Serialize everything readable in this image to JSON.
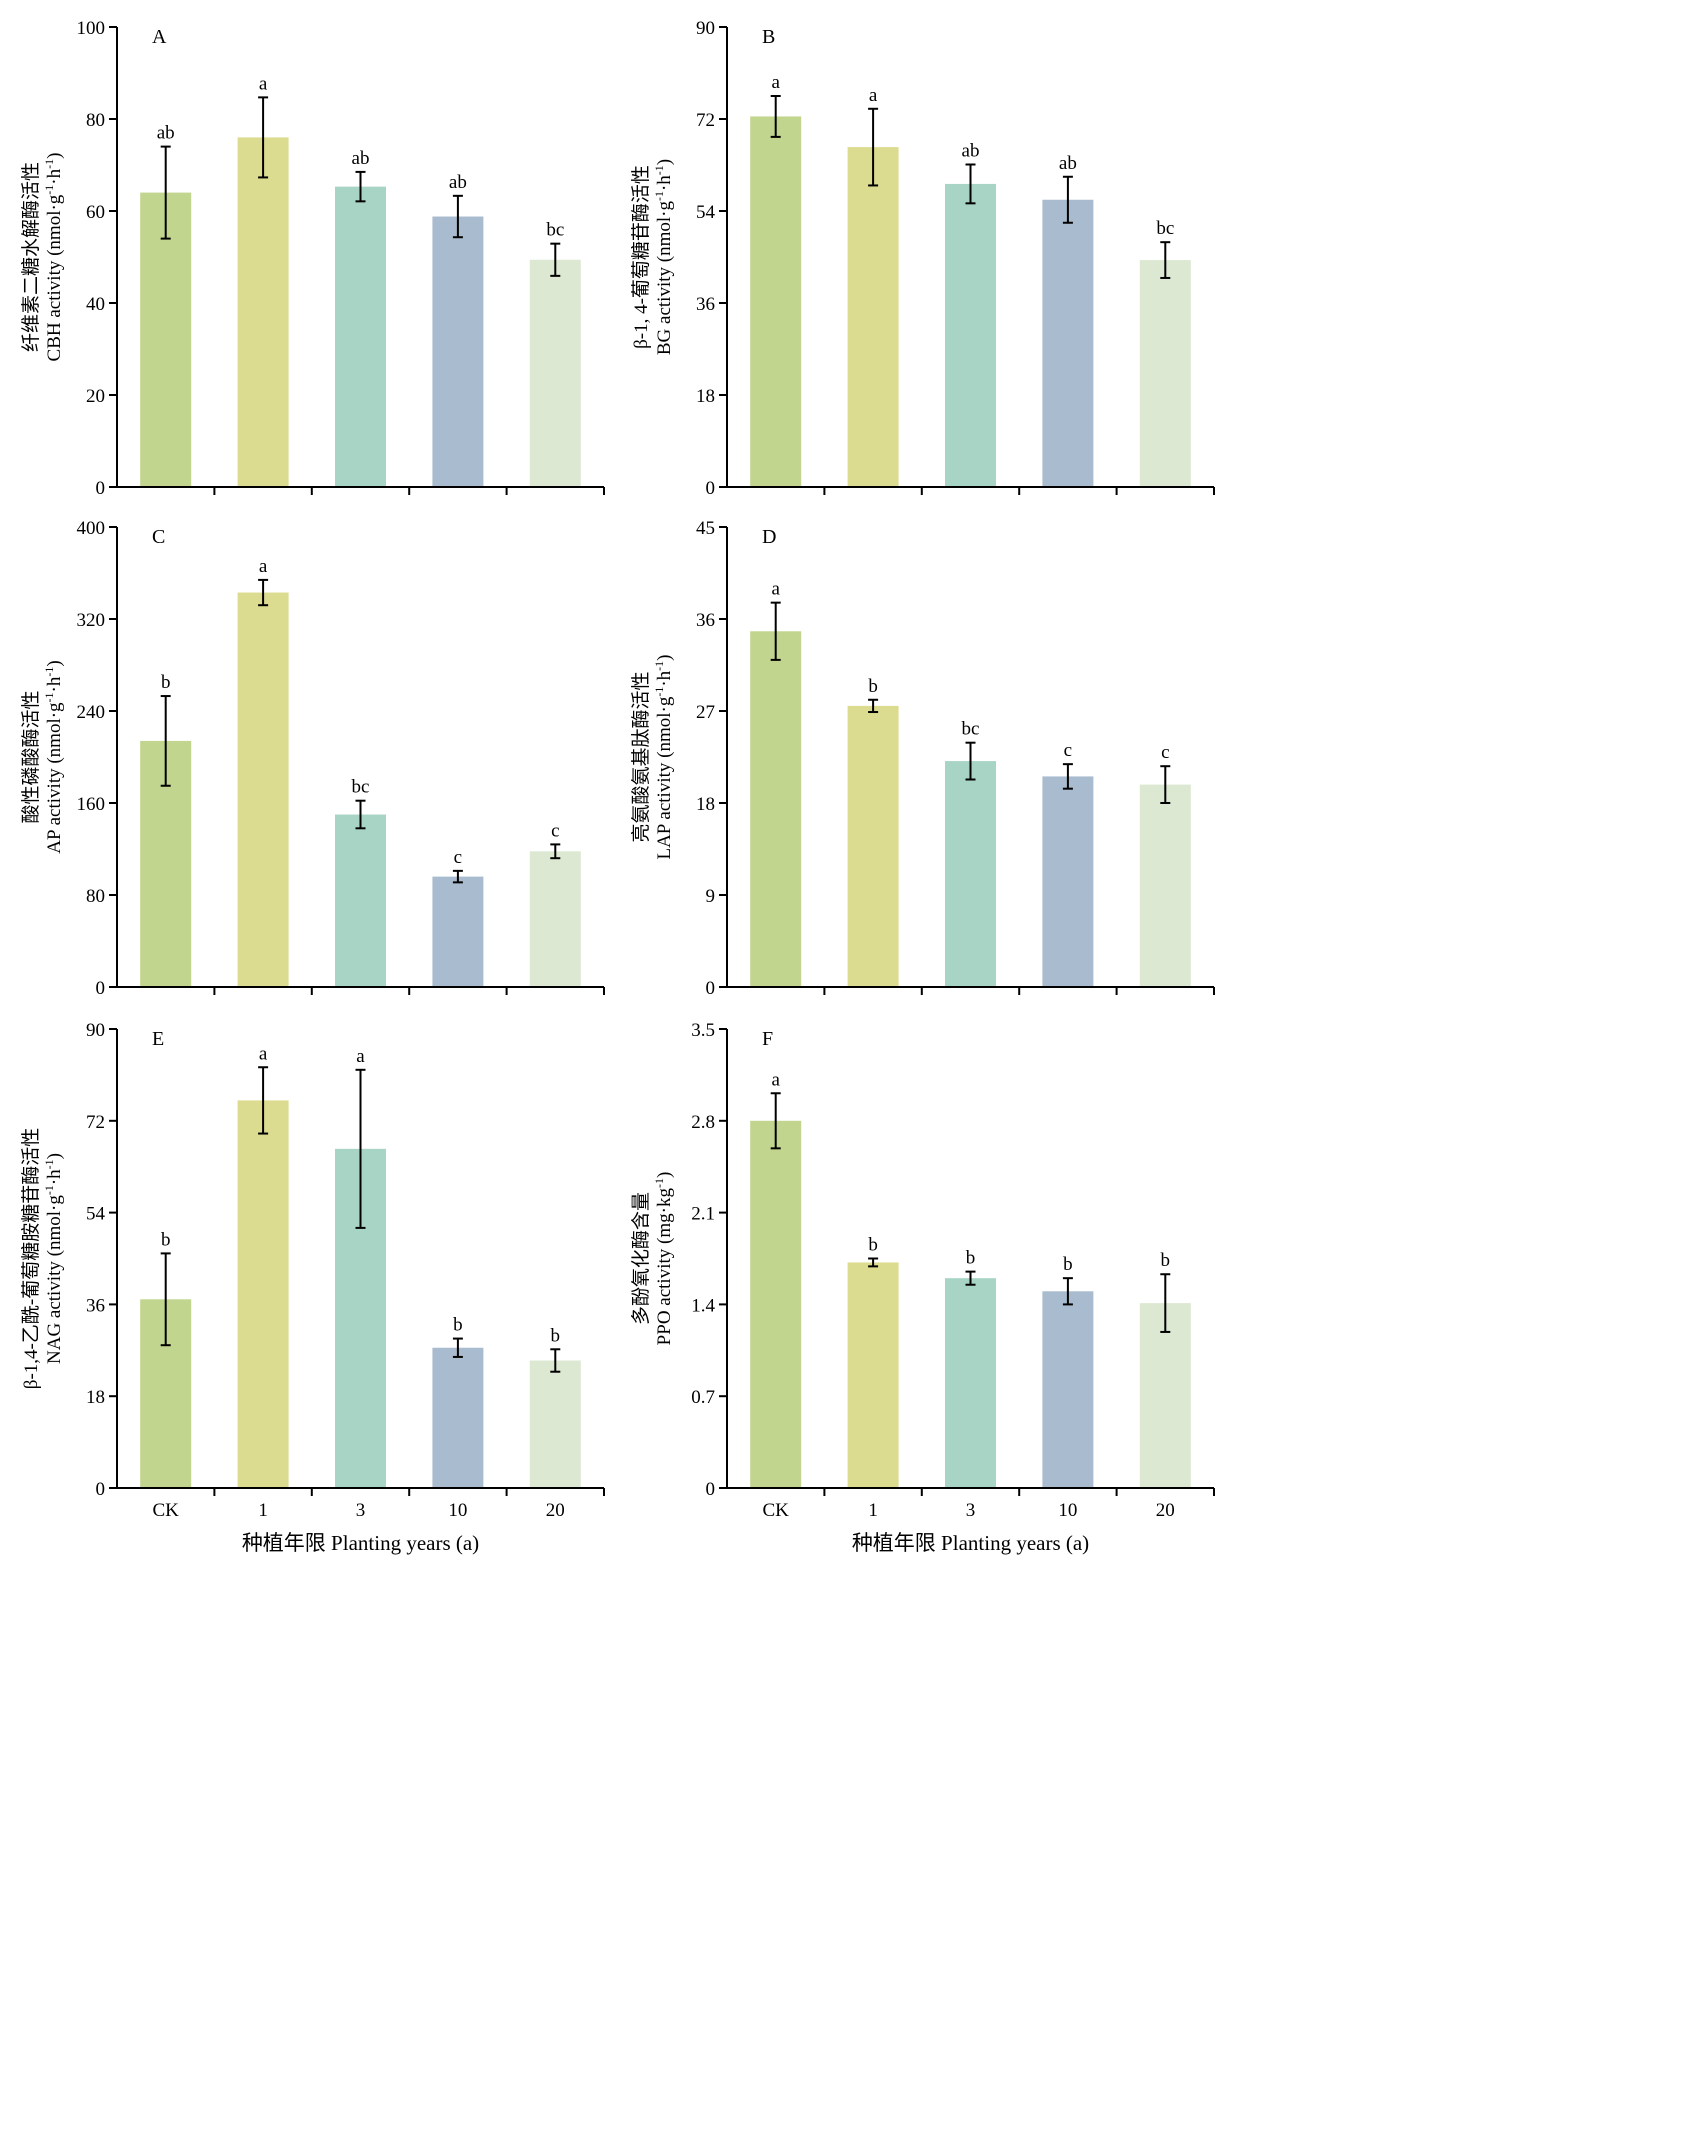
{
  "colors": [
    "#c2d58e",
    "#dcdc90",
    "#a8d4c5",
    "#a9bccf",
    "#dde8d3"
  ],
  "x_axis_title": "种植年限 Planting years (a)",
  "chart_data": [
    {
      "type": "bar",
      "panel": "A",
      "categories": [
        "CK",
        "1",
        "3",
        "10",
        "20"
      ],
      "values": [
        64,
        76,
        65.3,
        58.8,
        49.4
      ],
      "errors": [
        10,
        8.7,
        3.2,
        4.5,
        3.5
      ],
      "letters": [
        "ab",
        "a",
        "ab",
        "ab",
        "bc"
      ],
      "ylabel_cn": "纤维素二糖水解酶活性",
      "ylabel_en": "CBH activity (nmol·g-1·h-1)",
      "ylim": [
        0,
        100
      ],
      "yticks": [
        0,
        20,
        40,
        60,
        80,
        100
      ]
    },
    {
      "type": "bar",
      "panel": "B",
      "categories": [
        "CK",
        "1",
        "3",
        "10",
        "20"
      ],
      "values": [
        72.5,
        66.5,
        59.3,
        56.2,
        44.4
      ],
      "errors": [
        4,
        7.5,
        3.8,
        4.5,
        3.5
      ],
      "letters": [
        "a",
        "a",
        "ab",
        "ab",
        "bc"
      ],
      "ylabel_cn": "β-1, 4-葡萄糖苷酶活性",
      "ylabel_en": "BG activity (nmol·g-1·h-1)",
      "ylim": [
        0,
        90
      ],
      "yticks": [
        0,
        18,
        36,
        54,
        72,
        90
      ]
    },
    {
      "type": "bar",
      "panel": "C",
      "categories": [
        "CK",
        "1",
        "3",
        "10",
        "20"
      ],
      "values": [
        214,
        343,
        150,
        96,
        118
      ],
      "errors": [
        39,
        11,
        12,
        5,
        6
      ],
      "letters": [
        "b",
        "a",
        "bc",
        "c",
        "c"
      ],
      "ylabel_cn": "酸性磷酸酶活性",
      "ylabel_en": "AP activity (nmol·g-1·h-1)",
      "ylim": [
        0,
        400
      ],
      "yticks": [
        0,
        80,
        160,
        240,
        320,
        400
      ]
    },
    {
      "type": "bar",
      "panel": "D",
      "categories": [
        "CK",
        "1",
        "3",
        "10",
        "20"
      ],
      "values": [
        34.8,
        27.5,
        22.1,
        20.6,
        19.8
      ],
      "errors": [
        2.8,
        0.6,
        1.8,
        1.2,
        1.8
      ],
      "letters": [
        "a",
        "b",
        "bc",
        "c",
        "c"
      ],
      "ylabel_cn": "亮氨酸氨基肽酶活性",
      "ylabel_en": "LAP activity (nmol·g-1·h-1)",
      "ylim": [
        0,
        45
      ],
      "yticks": [
        0,
        9,
        18,
        27,
        36,
        45
      ]
    },
    {
      "type": "bar",
      "panel": "E",
      "categories": [
        "CK",
        "1",
        "3",
        "10",
        "20"
      ],
      "values": [
        37,
        76,
        66.5,
        27.5,
        25
      ],
      "errors": [
        9,
        6.5,
        15.5,
        1.8,
        2.2
      ],
      "letters": [
        "b",
        "a",
        "a",
        "b",
        "b"
      ],
      "ylabel_cn": "β-1,4-乙酰-葡萄糖胺糖苷酶活性",
      "ylabel_en": "NAG activity (nmol·g-1·h-1)",
      "ylim": [
        0,
        90
      ],
      "yticks": [
        0,
        18,
        36,
        54,
        72,
        90
      ]
    },
    {
      "type": "bar",
      "panel": "F",
      "categories": [
        "CK",
        "1",
        "3",
        "10",
        "20"
      ],
      "values": [
        2.8,
        1.72,
        1.6,
        1.5,
        1.41
      ],
      "errors": [
        0.21,
        0.03,
        0.05,
        0.1,
        0.22
      ],
      "letters": [
        "a",
        "b",
        "b",
        "b",
        "b"
      ],
      "ylabel_cn": "多酚氧化酶含量",
      "ylabel_en": "PPO activity (mg·kg-1)",
      "ylim": [
        0,
        3.5
      ],
      "yticks": [
        "0",
        "0.7",
        "1.4",
        "2.1",
        "2.8",
        "3.5"
      ]
    }
  ]
}
